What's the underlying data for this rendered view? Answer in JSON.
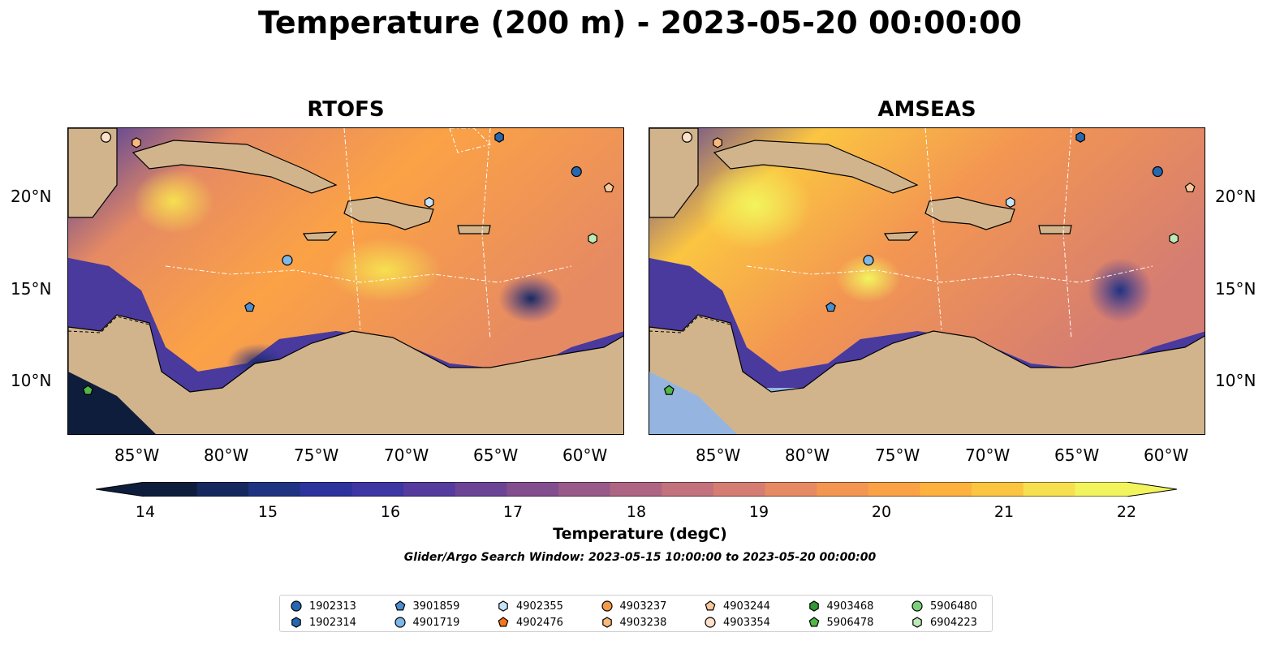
{
  "title": "Temperature (200 m) - 2023-05-20 00:00:00",
  "panels": [
    {
      "title": "RTOFS"
    },
    {
      "title": "AMSEAS"
    }
  ],
  "axes": {
    "lon_ticks": [
      "85°W",
      "80°W",
      "75°W",
      "70°W",
      "65°W",
      "60°W"
    ],
    "lat_ticks": [
      "20°N",
      "15°N",
      "10°N"
    ],
    "lon_range": [
      -89,
      -58
    ],
    "lat_range": [
      7,
      24
    ]
  },
  "colorbar": {
    "label": "Temperature (degC)",
    "ticks": [
      "14",
      "15",
      "16",
      "17",
      "18",
      "19",
      "20",
      "21",
      "22"
    ],
    "range": [
      14,
      22
    ],
    "extend": "both",
    "colors": [
      "#0e1d3c",
      "#15295e",
      "#1f3383",
      "#2d339c",
      "#3d36a3",
      "#543b9d",
      "#6c4495",
      "#834e8e",
      "#985a89",
      "#ad6583",
      "#c3717c",
      "#d57d72",
      "#e68a63",
      "#f39652",
      "#fba246",
      "#fdb13f",
      "#fbc541",
      "#f6e050",
      "#f2f45d"
    ]
  },
  "subtitle": "Glider/Argo Search Window: 2023-05-15 10:00:00 to 2023-05-20 00:00:00",
  "colors": {
    "land": "#d2b48c",
    "ocean": "#95b5e0"
  },
  "legend": [
    {
      "id": "1902313",
      "marker": "circle",
      "color": "#2767b0"
    },
    {
      "id": "1902314",
      "marker": "hexagon",
      "color": "#2767b0"
    },
    {
      "id": "3901859",
      "marker": "pentagon",
      "color": "#4b8fd1"
    },
    {
      "id": "4901719",
      "marker": "circle",
      "color": "#7fb7e6"
    },
    {
      "id": "4902355",
      "marker": "hexagon",
      "color": "#c7e3f7"
    },
    {
      "id": "4902476",
      "marker": "pentagon",
      "color": "#f4751c"
    },
    {
      "id": "4903237",
      "marker": "circle",
      "color": "#f59a4a"
    },
    {
      "id": "4903238",
      "marker": "hexagon",
      "color": "#f8b97a"
    },
    {
      "id": "4903244",
      "marker": "pentagon",
      "color": "#f8c89a"
    },
    {
      "id": "4903354",
      "marker": "circle",
      "color": "#fde0c8"
    },
    {
      "id": "4903468",
      "marker": "hexagon",
      "color": "#2f9a34"
    },
    {
      "id": "5906478",
      "marker": "pentagon",
      "color": "#4fb848"
    },
    {
      "id": "5906480",
      "marker": "circle",
      "color": "#7dd07a"
    },
    {
      "id": "6904223",
      "marker": "hexagon",
      "color": "#bdebb7"
    }
  ],
  "floats": [
    {
      "id": "4903354",
      "lon": -86.9,
      "lat": 23.5
    },
    {
      "id": "4903238",
      "lon": -85.2,
      "lat": 23.2
    },
    {
      "id": "1902314",
      "lon": -65.0,
      "lat": 23.5
    },
    {
      "id": "1902313",
      "lon": -60.7,
      "lat": 21.6
    },
    {
      "id": "4903244",
      "lon": -58.9,
      "lat": 20.7
    },
    {
      "id": "4902355",
      "lon": -68.9,
      "lat": 19.9
    },
    {
      "id": "6904223",
      "lon": -59.8,
      "lat": 17.9
    },
    {
      "id": "4901719",
      "lon": -76.8,
      "lat": 16.7
    },
    {
      "id": "3901859",
      "lon": -78.9,
      "lat": 14.1
    },
    {
      "id": "5906478",
      "lon": -87.9,
      "lat": 9.5
    }
  ]
}
